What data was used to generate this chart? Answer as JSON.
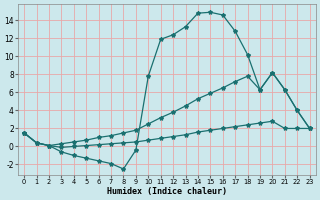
{
  "xlabel": "Humidex (Indice chaleur)",
  "bg_color": "#cce8ec",
  "grid_color": "#e8a8a8",
  "line_color": "#1a7070",
  "xlim": [
    -0.5,
    23.5
  ],
  "ylim": [
    -3.2,
    15.8
  ],
  "xticks": [
    0,
    1,
    2,
    3,
    4,
    5,
    6,
    7,
    8,
    9,
    10,
    11,
    12,
    13,
    14,
    15,
    16,
    17,
    18,
    19,
    20,
    21,
    22,
    23
  ],
  "yticks": [
    -2,
    0,
    2,
    4,
    6,
    8,
    10,
    12,
    14
  ],
  "series1_x": [
    0,
    1,
    2,
    3,
    4,
    5,
    6,
    7,
    8,
    9,
    10,
    11,
    12,
    13,
    14,
    15,
    16,
    17,
    18,
    19,
    20,
    21,
    22,
    23
  ],
  "series1_y": [
    1.5,
    0.4,
    0.1,
    -0.6,
    -1.0,
    -1.3,
    -1.6,
    -1.9,
    -2.5,
    -0.4,
    7.8,
    11.9,
    12.4,
    13.3,
    14.8,
    14.9,
    14.6,
    12.8,
    10.2,
    6.3,
    8.2,
    6.3,
    4.0,
    2.0
  ],
  "series2_x": [
    0,
    1,
    2,
    3,
    4,
    5,
    6,
    7,
    8,
    9,
    10,
    11,
    12,
    13,
    14,
    15,
    16,
    17,
    18,
    19,
    20,
    21,
    22,
    23
  ],
  "series2_y": [
    1.5,
    0.4,
    0.1,
    0.3,
    0.5,
    0.7,
    1.0,
    1.2,
    1.5,
    1.8,
    2.5,
    3.2,
    3.8,
    4.5,
    5.3,
    5.9,
    6.5,
    7.2,
    7.8,
    6.3,
    8.2,
    6.3,
    4.0,
    2.0
  ],
  "series3_x": [
    0,
    1,
    2,
    3,
    4,
    5,
    6,
    7,
    8,
    9,
    10,
    11,
    12,
    13,
    14,
    15,
    16,
    17,
    18,
    19,
    20,
    21,
    22,
    23
  ],
  "series3_y": [
    1.5,
    0.4,
    0.1,
    -0.1,
    0.0,
    0.1,
    0.2,
    0.3,
    0.4,
    0.5,
    0.7,
    0.9,
    1.1,
    1.3,
    1.6,
    1.8,
    2.0,
    2.2,
    2.4,
    2.6,
    2.8,
    2.0,
    2.0,
    2.0
  ]
}
